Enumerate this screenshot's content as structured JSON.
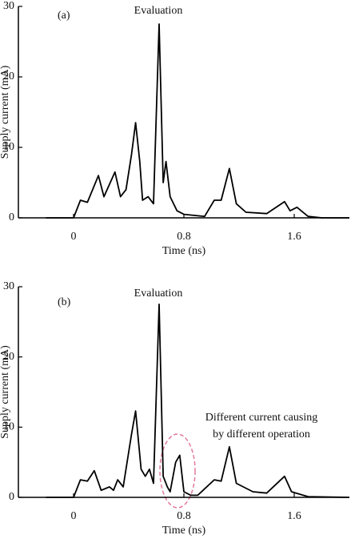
{
  "chart_data": [
    {
      "type": "line",
      "label": "(a)",
      "title": "Evaluation",
      "ylabel": "Supply current (mA)",
      "xlabel": "Time (ns)",
      "color": "#000000",
      "x": [
        -0.2,
        0,
        0.05,
        0.1,
        0.18,
        0.22,
        0.3,
        0.34,
        0.38,
        0.42,
        0.45,
        0.48,
        0.5,
        0.54,
        0.58,
        0.62,
        0.65,
        0.67,
        0.7,
        0.75,
        0.8,
        0.9,
        0.95,
        1.02,
        1.07,
        1.13,
        1.18,
        1.25,
        1.4,
        1.53,
        1.57,
        1.62,
        1.7,
        1.8,
        2.0
      ],
      "values": [
        0,
        0,
        2.5,
        2.2,
        6,
        3,
        6.5,
        3,
        4,
        9,
        13.5,
        8,
        2.5,
        3,
        2,
        27.5,
        5,
        8,
        3,
        1,
        0.5,
        0.3,
        0.2,
        2.5,
        2.5,
        7,
        2,
        0.8,
        0.6,
        2.3,
        1,
        1.5,
        0.2,
        0,
        0
      ],
      "xlim": [
        -0.4,
        2.0
      ],
      "ylim": [
        0,
        30
      ],
      "xticks": [
        0,
        0.8,
        1.6
      ],
      "yticks": [
        0,
        10,
        20,
        30
      ]
    },
    {
      "type": "line",
      "label": "(b)",
      "title": "Evaluation",
      "ylabel": "Supply current (mA)",
      "xlabel": "Time (ns)",
      "color": "#000000",
      "annotation": [
        "Different current causing",
        "by different operation"
      ],
      "x": [
        -0.2,
        0,
        0.05,
        0.1,
        0.15,
        0.2,
        0.26,
        0.29,
        0.32,
        0.36,
        0.42,
        0.45,
        0.49,
        0.52,
        0.55,
        0.58,
        0.62,
        0.65,
        0.68,
        0.7,
        0.74,
        0.77,
        0.8,
        0.85,
        0.9,
        1.02,
        1.07,
        1.13,
        1.18,
        1.3,
        1.4,
        1.53,
        1.58,
        1.7,
        2.0
      ],
      "values": [
        0,
        0,
        2.5,
        2.3,
        3.8,
        1,
        1.5,
        1,
        2.5,
        1.5,
        9,
        12.3,
        4,
        3,
        4,
        2,
        27.5,
        3,
        1.5,
        0.8,
        5,
        6,
        0.8,
        0.3,
        0.3,
        2.5,
        2.3,
        7.2,
        2,
        0.8,
        0.6,
        3,
        0.8,
        0.1,
        0
      ],
      "xlim": [
        -0.4,
        2.0
      ],
      "ylim": [
        0,
        30
      ],
      "xticks": [
        0,
        0.8,
        1.6
      ],
      "yticks": [
        0,
        10,
        20,
        30
      ]
    }
  ]
}
